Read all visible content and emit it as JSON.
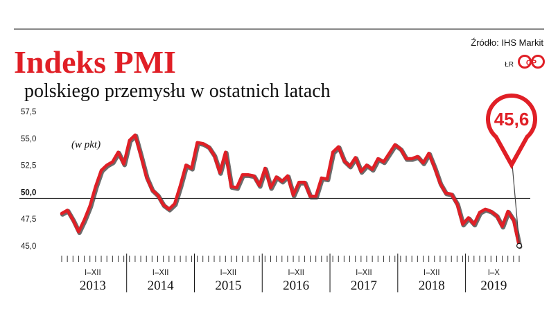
{
  "header": {
    "title": "Indeks PMI",
    "subtitle": "polskiego przemysłu w ostatnich latach",
    "source": "Źródło: IHS Markit",
    "author": "ŁR",
    "logo_text": "CP"
  },
  "colors": {
    "accent": "#e01f26",
    "line_shadow": "#3a3a3a",
    "text": "#111111"
  },
  "highlight": {
    "label": "45,6",
    "value": 45.6
  },
  "chart_data": {
    "type": "line",
    "title": "Indeks PMI",
    "subtitle": "polskiego przemysłu w ostatnich latach",
    "ylabel": "(w pkt)",
    "ylim": [
      45.0,
      57.5
    ],
    "yticks": [
      {
        "value": 45.0,
        "label": "45,0"
      },
      {
        "value": 47.5,
        "label": "47,5"
      },
      {
        "value": 50.0,
        "label": "50,0"
      },
      {
        "value": 52.5,
        "label": "52,5"
      },
      {
        "value": 55.0,
        "label": "55,0"
      },
      {
        "value": 57.5,
        "label": "57,5"
      }
    ],
    "reference_line": 50.0,
    "grid": false,
    "periods": [
      {
        "months": "I–XII",
        "year": "2013",
        "count": 12
      },
      {
        "months": "I–XII",
        "year": "2014",
        "count": 12
      },
      {
        "months": "I–XII",
        "year": "2015",
        "count": 12
      },
      {
        "months": "I–XII",
        "year": "2016",
        "count": 12
      },
      {
        "months": "I–XII",
        "year": "2017",
        "count": 12
      },
      {
        "months": "I–XII",
        "year": "2018",
        "count": 12
      },
      {
        "months": "I–X",
        "year": "2019",
        "count": 10
      }
    ],
    "series": [
      {
        "values": [
          48.6,
          48.9,
          48.0,
          46.9,
          48.0,
          49.3,
          51.1,
          52.6,
          53.1,
          53.4,
          54.3,
          53.2,
          55.4,
          55.9,
          54.0,
          52.0,
          50.8,
          50.3,
          49.4,
          49.0,
          49.5,
          51.2,
          53.1,
          52.8,
          55.2,
          55.1,
          54.8,
          54.0,
          52.4,
          54.3,
          51.1,
          51.0,
          52.2,
          52.2,
          52.1,
          51.2,
          52.8,
          51.0,
          52.0,
          51.6,
          52.1,
          50.3,
          51.5,
          51.5,
          50.2,
          50.2,
          51.9,
          51.8,
          54.3,
          54.8,
          53.5,
          53.0,
          53.8,
          52.5,
          53.1,
          52.7,
          53.7,
          53.4,
          54.2,
          55.0,
          54.6,
          53.7,
          53.7,
          53.9,
          53.3,
          54.2,
          52.9,
          51.4,
          50.5,
          50.4,
          49.5,
          47.6,
          48.2,
          47.6,
          48.7,
          49.0,
          48.8,
          48.4,
          47.4,
          48.8,
          48.0,
          45.6
        ]
      }
    ]
  }
}
